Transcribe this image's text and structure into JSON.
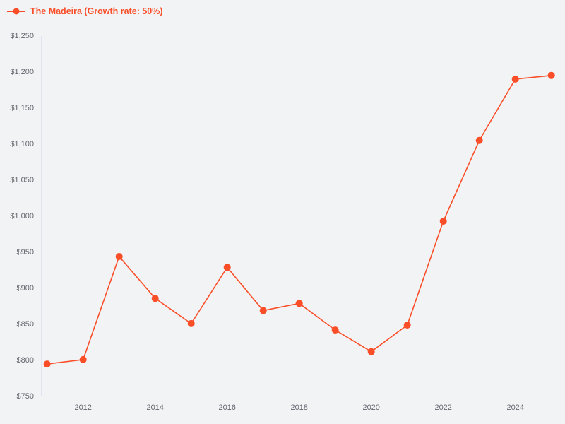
{
  "page": {
    "background_color": "#f2f3f5"
  },
  "legend": {
    "label": "The Madeira (Growth rate: 50%)",
    "marker": "line-with-dot"
  },
  "colors": {
    "accent": "#f94e28",
    "axis_line": "#ccd6eb",
    "tick_label": "#62666d",
    "background": "#f2f3f5"
  },
  "chart_data": {
    "type": "line",
    "title": "The Madeira (Growth rate: 50%)",
    "xlabel": "",
    "ylabel": "",
    "grid": false,
    "legend_position": "top-left",
    "xlim": [
      2011,
      2025
    ],
    "ylim": [
      750,
      1250
    ],
    "x": [
      2011,
      2012,
      2013,
      2014,
      2015,
      2016,
      2017,
      2018,
      2019,
      2020,
      2021,
      2022,
      2023,
      2024,
      2025
    ],
    "series": [
      {
        "name": "The Madeira (Growth rate: 50%)",
        "values": [
          795,
          801,
          944,
          886,
          851,
          929,
          869,
          879,
          842,
          812,
          849,
          993,
          1105,
          1190,
          1195
        ]
      }
    ],
    "x_ticks": [
      {
        "value": 2012,
        "label": "2012"
      },
      {
        "value": 2014,
        "label": "2014"
      },
      {
        "value": 2016,
        "label": "2016"
      },
      {
        "value": 2018,
        "label": "2018"
      },
      {
        "value": 2020,
        "label": "2020"
      },
      {
        "value": 2022,
        "label": "2022"
      },
      {
        "value": 2024,
        "label": "2024"
      }
    ],
    "y_ticks": [
      {
        "value": 750,
        "label": "$750"
      },
      {
        "value": 800,
        "label": "$800"
      },
      {
        "value": 850,
        "label": "$850"
      },
      {
        "value": 900,
        "label": "$900"
      },
      {
        "value": 950,
        "label": "$950"
      },
      {
        "value": 1000,
        "label": "$1,000"
      },
      {
        "value": 1050,
        "label": "$1,050"
      },
      {
        "value": 1100,
        "label": "$1,100"
      },
      {
        "value": 1150,
        "label": "$1,150"
      },
      {
        "value": 1200,
        "label": "$1,200"
      },
      {
        "value": 1250,
        "label": "$1,250"
      }
    ]
  }
}
